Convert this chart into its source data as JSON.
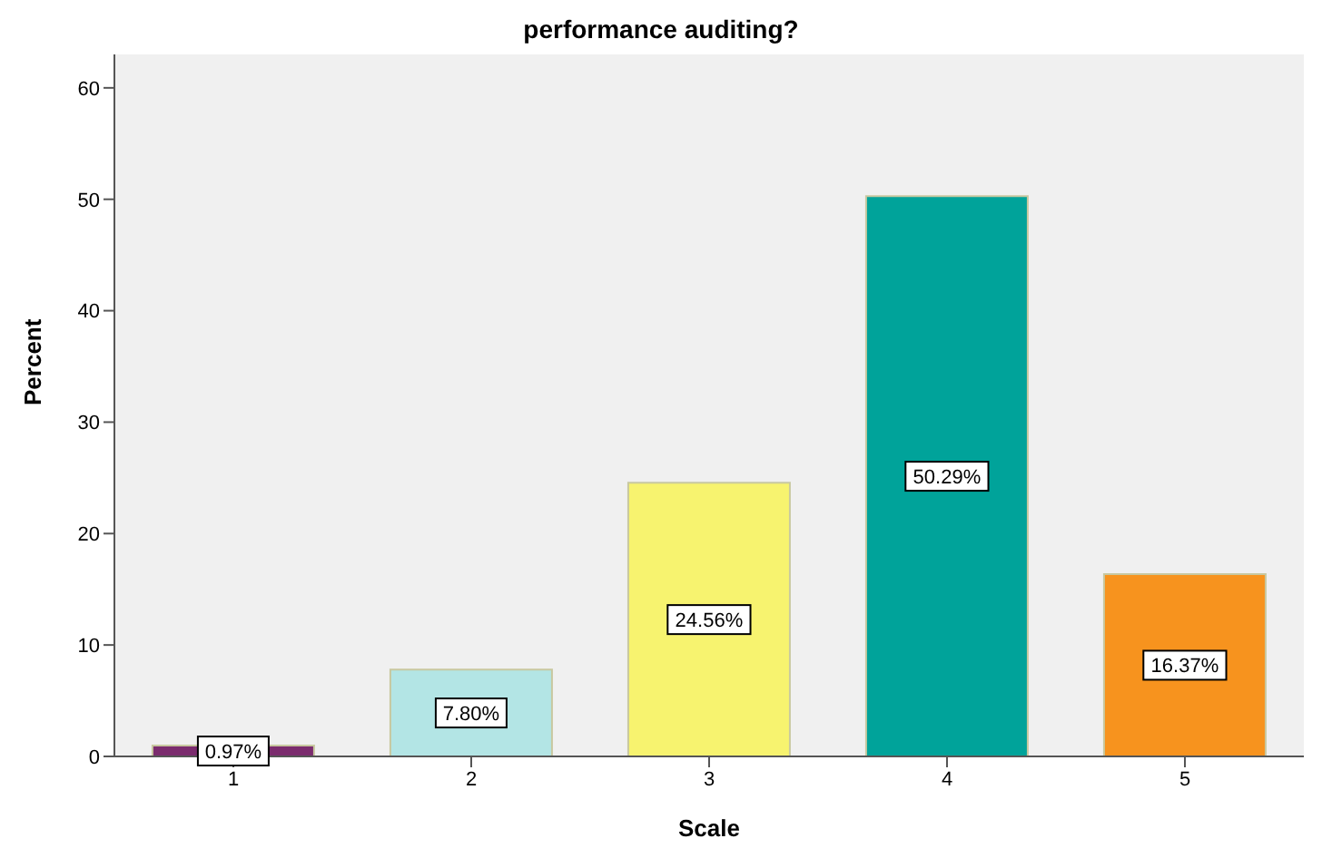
{
  "chart_data": {
    "type": "bar",
    "title": "performance auditing?",
    "xlabel": "Scale",
    "ylabel": "Percent",
    "categories": [
      "1",
      "2",
      "3",
      "4",
      "5"
    ],
    "values": [
      0.97,
      7.8,
      24.56,
      50.29,
      16.37
    ],
    "colors": [
      "#7b2c6e",
      "#b3e5e5",
      "#f7f36f",
      "#00a39a",
      "#f7931e"
    ],
    "value_labels": [
      "0.97%",
      "7.80%",
      "24.56%",
      "50.29%",
      "16.37%"
    ],
    "ylim": [
      0,
      63
    ],
    "yticks": [
      0,
      10,
      20,
      30,
      40,
      50,
      60
    ],
    "grid": false
  }
}
